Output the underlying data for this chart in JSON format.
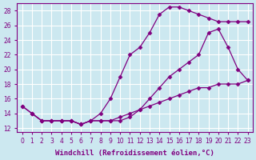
{
  "xlabel": "Windchill (Refroidissement éolien,°C)",
  "ylabel": "",
  "bg_color": "#cce8f0",
  "grid_color": "#ffffff",
  "line_color": "#800080",
  "xlim": [
    -0.5,
    23.5
  ],
  "ylim": [
    11.5,
    29
  ],
  "xticks": [
    0,
    1,
    2,
    3,
    4,
    5,
    6,
    7,
    8,
    9,
    10,
    11,
    12,
    13,
    14,
    15,
    16,
    17,
    18,
    19,
    20,
    21,
    22,
    23
  ],
  "yticks": [
    12,
    14,
    16,
    18,
    20,
    22,
    24,
    26,
    28
  ],
  "line1_x": [
    0,
    1,
    2,
    3,
    4,
    5,
    6,
    7,
    8,
    9,
    10,
    11,
    12,
    13,
    14,
    15,
    16,
    17,
    18,
    19,
    20,
    21,
    22,
    23
  ],
  "line1_y": [
    15,
    14,
    13,
    13,
    13,
    13,
    12.5,
    13,
    14,
    16,
    19,
    22,
    23,
    25,
    27.5,
    28.5,
    28.5,
    28.0,
    27.5,
    27.0,
    26.5,
    26.5,
    26.5,
    26.5
  ],
  "line2_x": [
    0,
    1,
    2,
    3,
    4,
    5,
    6,
    7,
    8,
    9,
    10,
    11,
    12,
    13,
    14,
    15,
    16,
    17,
    18,
    19,
    20,
    21,
    22,
    23
  ],
  "line2_y": [
    15,
    14,
    13,
    13,
    13,
    13,
    12.5,
    13,
    13,
    13,
    13,
    13.5,
    14.5,
    16,
    17.5,
    19,
    20,
    21,
    22,
    25,
    25.5,
    23,
    20,
    18.5
  ],
  "line3_x": [
    1,
    2,
    3,
    4,
    5,
    6,
    7,
    8,
    9,
    10,
    11,
    12,
    13,
    14,
    15,
    16,
    17,
    18,
    19,
    20,
    21,
    22,
    23
  ],
  "line3_y": [
    14,
    13,
    13,
    13,
    13,
    12.5,
    13,
    13,
    13,
    13.5,
    14,
    14.5,
    15,
    15.5,
    16,
    16.5,
    17,
    17.5,
    17.5,
    18,
    18,
    18,
    18.5
  ],
  "marker": "D",
  "markersize": 2.5,
  "linewidth": 0.9,
  "xlabel_fontsize": 6.5,
  "tick_fontsize": 5.5
}
